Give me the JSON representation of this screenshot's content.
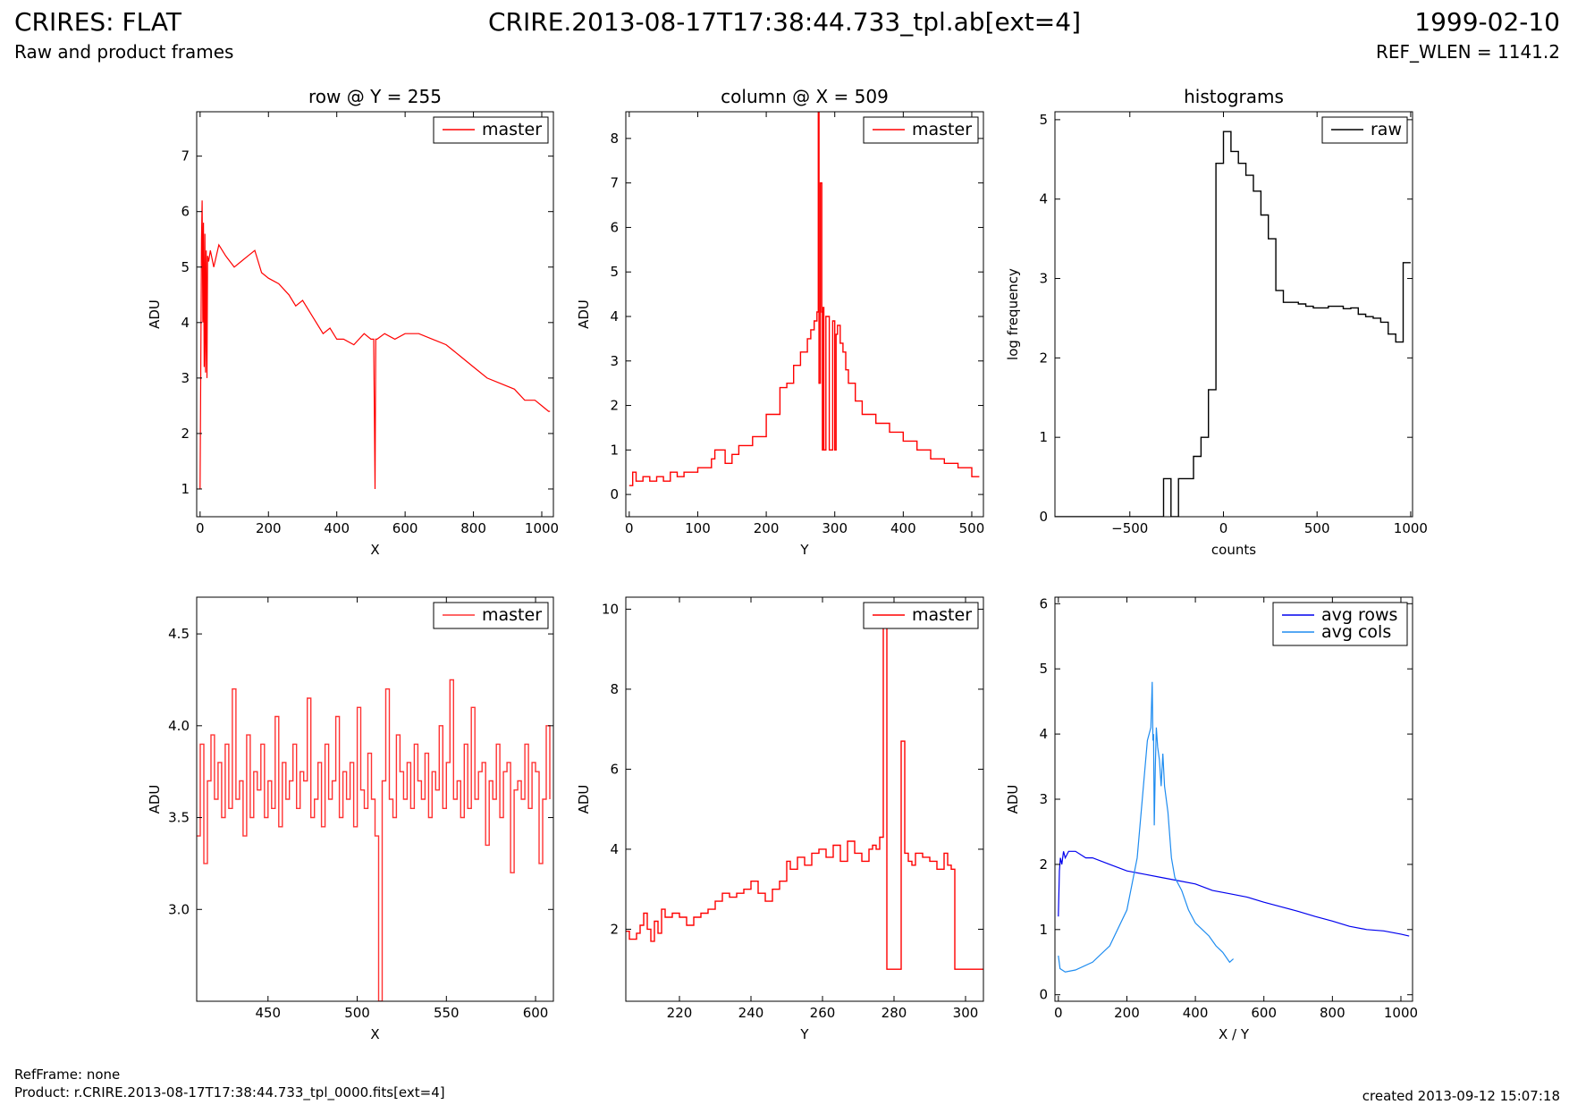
{
  "header": {
    "title": "CRIRES: FLAT",
    "subtitle": "Raw and product frames",
    "filename": "CRIRE.2013-08-17T17:38:44.733_tpl.ab[ext=4]",
    "date": "1999-02-10",
    "ref_wlen": "REF_WLEN = 1141.2"
  },
  "footer": {
    "ref_frame": "RefFrame: none",
    "product": "Product: r.CRIRE.2013-08-17T17:38:44.733_tpl_0000.fits[ext=4]",
    "created": "created 2013-09-12 15:07:18"
  },
  "chart_data": [
    {
      "id": "row",
      "type": "line",
      "title": "row @ Y = 255",
      "xlabel": "X",
      "ylabel": "ADU",
      "xlim": [
        -10,
        1034
      ],
      "ylim": [
        0.5,
        7.8
      ],
      "xticks": [
        0,
        200,
        400,
        600,
        800,
        1000
      ],
      "yticks": [
        1,
        2,
        3,
        4,
        5,
        6,
        7
      ],
      "legend": "top-right",
      "series": [
        {
          "name": "master",
          "color": "#ff0000",
          "step": false,
          "x": [
            0,
            4,
            6,
            8,
            10,
            12,
            14,
            16,
            18,
            20,
            22,
            25,
            30,
            40,
            55,
            75,
            100,
            120,
            140,
            160,
            180,
            200,
            230,
            260,
            280,
            300,
            330,
            360,
            380,
            400,
            420,
            450,
            480,
            500,
            508,
            512,
            514,
            518,
            540,
            570,
            600,
            640,
            680,
            720,
            760,
            800,
            840,
            880,
            920,
            950,
            980,
            1000,
            1020,
            1024
          ],
          "y": [
            1.0,
            5.5,
            6.2,
            4.0,
            5.8,
            3.2,
            5.6,
            3.1,
            5.3,
            3.0,
            5.2,
            5.1,
            5.3,
            5.0,
            5.4,
            5.2,
            5.0,
            5.1,
            5.2,
            5.3,
            4.9,
            4.8,
            4.7,
            4.5,
            4.3,
            4.4,
            4.1,
            3.8,
            3.9,
            3.7,
            3.7,
            3.6,
            3.8,
            3.7,
            3.7,
            1.0,
            3.7,
            3.7,
            3.8,
            3.7,
            3.8,
            3.8,
            3.7,
            3.6,
            3.4,
            3.2,
            3.0,
            2.9,
            2.8,
            2.6,
            2.6,
            2.5,
            2.4,
            2.4
          ]
        }
      ]
    },
    {
      "id": "column",
      "type": "line",
      "title": "column @ X = 509",
      "xlabel": "Y",
      "ylabel": "ADU",
      "xlim": [
        -5,
        517
      ],
      "ylim": [
        -0.5,
        8.6
      ],
      "xticks": [
        0,
        100,
        200,
        300,
        400,
        500
      ],
      "yticks": [
        0,
        1,
        2,
        3,
        4,
        5,
        6,
        7,
        8
      ],
      "legend": "top-right",
      "series": [
        {
          "name": "master",
          "color": "#ff0000",
          "step": true,
          "x": [
            0,
            5,
            10,
            20,
            30,
            40,
            50,
            60,
            70,
            80,
            90,
            100,
            120,
            125,
            140,
            150,
            160,
            180,
            200,
            220,
            230,
            240,
            250,
            260,
            265,
            270,
            274,
            276,
            277,
            279,
            281,
            282,
            283,
            284,
            287,
            292,
            297,
            300,
            302,
            304,
            306,
            308,
            312,
            316,
            320,
            330,
            340,
            360,
            380,
            400,
            420,
            440,
            460,
            480,
            500,
            511
          ],
          "y": [
            0.2,
            0.5,
            0.3,
            0.4,
            0.3,
            0.4,
            0.3,
            0.5,
            0.4,
            0.5,
            0.5,
            0.6,
            0.8,
            1.0,
            0.7,
            0.9,
            1.1,
            1.3,
            1.8,
            2.4,
            2.5,
            2.9,
            3.2,
            3.5,
            3.7,
            3.9,
            4.1,
            8.6,
            2.5,
            7.0,
            4.1,
            1.0,
            4.2,
            1.0,
            4.0,
            1.0,
            3.9,
            1.0,
            3.6,
            3.8,
            3.8,
            3.4,
            3.2,
            2.8,
            2.5,
            2.1,
            1.8,
            1.6,
            1.4,
            1.2,
            1.0,
            0.8,
            0.7,
            0.6,
            0.4,
            0.4
          ]
        }
      ]
    },
    {
      "id": "histograms",
      "type": "line",
      "title": "histograms",
      "xlabel": "counts",
      "ylabel": "log frequency",
      "xlim": [
        -900,
        1010
      ],
      "ylim": [
        0,
        5.1
      ],
      "xticks": [
        -500,
        0,
        500,
        1000
      ],
      "yticks": [
        0,
        1,
        2,
        3,
        4,
        5
      ],
      "legend": "top-right",
      "series": [
        {
          "name": "raw",
          "color": "#000000",
          "step": true,
          "x": [
            -900,
            -360,
            -320,
            -280,
            -240,
            -200,
            -160,
            -120,
            -80,
            -40,
            0,
            40,
            80,
            120,
            160,
            200,
            240,
            280,
            320,
            360,
            400,
            440,
            480,
            520,
            560,
            600,
            640,
            680,
            720,
            760,
            800,
            840,
            880,
            920,
            960,
            1000
          ],
          "y": [
            0,
            0,
            0.48,
            0,
            0.48,
            0.48,
            0.76,
            1.0,
            1.6,
            4.45,
            4.85,
            4.6,
            4.45,
            4.3,
            4.1,
            3.8,
            3.5,
            2.85,
            2.7,
            2.7,
            2.68,
            2.65,
            2.63,
            2.63,
            2.65,
            2.65,
            2.62,
            2.63,
            2.55,
            2.52,
            2.5,
            2.45,
            2.3,
            2.2,
            3.2,
            3.2
          ]
        }
      ]
    },
    {
      "id": "row-zoom",
      "type": "line",
      "title": "",
      "xlabel": "X",
      "ylabel": "ADU",
      "xlim": [
        410,
        610
      ],
      "ylim": [
        2.5,
        4.7
      ],
      "xticks": [
        450,
        500,
        550,
        600
      ],
      "yticks": [
        3.0,
        3.5,
        4.0,
        4.5
      ],
      "legend": "top-right",
      "series": [
        {
          "name": "master",
          "color": "#ff3333",
          "step": true,
          "x": [
            410,
            412,
            414,
            416,
            418,
            420,
            422,
            424,
            426,
            428,
            430,
            432,
            434,
            436,
            438,
            440,
            442,
            444,
            446,
            448,
            450,
            452,
            454,
            456,
            458,
            460,
            462,
            464,
            466,
            468,
            470,
            472,
            474,
            476,
            478,
            480,
            482,
            484,
            486,
            488,
            490,
            492,
            494,
            496,
            498,
            500,
            502,
            504,
            506,
            508,
            510,
            512,
            514,
            516,
            518,
            520,
            522,
            524,
            526,
            528,
            530,
            532,
            534,
            536,
            538,
            540,
            542,
            544,
            546,
            548,
            550,
            552,
            554,
            556,
            558,
            560,
            562,
            564,
            566,
            568,
            570,
            572,
            574,
            576,
            578,
            580,
            582,
            584,
            586,
            588,
            590,
            592,
            594,
            596,
            598,
            600,
            602,
            604,
            606,
            608
          ],
          "y": [
            3.4,
            3.9,
            3.25,
            3.7,
            3.95,
            3.6,
            3.8,
            3.5,
            3.9,
            3.55,
            4.2,
            3.6,
            3.7,
            3.4,
            3.95,
            3.5,
            3.75,
            3.65,
            3.9,
            3.5,
            3.7,
            3.55,
            4.05,
            3.45,
            3.8,
            3.6,
            3.7,
            3.9,
            3.55,
            3.75,
            3.7,
            4.15,
            3.5,
            3.6,
            3.8,
            3.45,
            3.9,
            3.6,
            3.7,
            4.05,
            3.5,
            3.75,
            3.6,
            3.8,
            3.45,
            4.1,
            3.65,
            3.55,
            3.85,
            3.6,
            3.4,
            2.5,
            3.7,
            4.2,
            3.6,
            3.5,
            3.95,
            3.75,
            3.6,
            3.8,
            3.55,
            3.9,
            3.7,
            3.6,
            3.85,
            3.5,
            3.75,
            3.65,
            4.0,
            3.55,
            3.8,
            4.25,
            3.6,
            3.7,
            3.5,
            3.9,
            3.55,
            4.1,
            3.6,
            3.75,
            3.8,
            3.35,
            3.7,
            3.6,
            3.9,
            3.5,
            3.75,
            3.8,
            3.2,
            3.65,
            3.7,
            3.6,
            3.9,
            3.55,
            3.8,
            3.75,
            3.25,
            3.6,
            4.0,
            3.6
          ]
        }
      ]
    },
    {
      "id": "column-zoom",
      "type": "line",
      "title": "",
      "xlabel": "Y",
      "ylabel": "ADU",
      "xlim": [
        205,
        305
      ],
      "ylim": [
        0.2,
        10.3
      ],
      "xticks": [
        220,
        240,
        260,
        280,
        300
      ],
      "yticks": [
        2,
        4,
        6,
        8,
        10
      ],
      "legend": "top-right",
      "series": [
        {
          "name": "master",
          "color": "#ff0000",
          "step": true,
          "x": [
            205,
            206,
            208,
            209,
            210,
            211,
            212,
            213,
            214,
            215,
            216,
            218,
            220,
            222,
            224,
            226,
            228,
            230,
            232,
            234,
            236,
            238,
            240,
            242,
            244,
            246,
            248,
            250,
            251,
            253,
            255,
            257,
            259,
            261,
            263,
            265,
            267,
            269,
            271,
            273,
            274,
            275,
            276,
            277,
            278,
            279,
            282,
            283,
            284,
            285,
            286,
            288,
            290,
            292,
            294,
            295,
            296,
            297,
            298,
            300,
            302,
            305
          ],
          "y": [
            1.95,
            1.75,
            1.9,
            2.1,
            2.4,
            2.0,
            1.7,
            2.2,
            1.9,
            2.5,
            2.3,
            2.4,
            2.3,
            2.1,
            2.3,
            2.4,
            2.5,
            2.7,
            2.9,
            2.8,
            2.9,
            3.0,
            3.2,
            2.9,
            2.7,
            3.0,
            3.2,
            3.7,
            3.5,
            3.8,
            3.6,
            3.9,
            4.0,
            3.8,
            4.1,
            3.7,
            4.2,
            3.9,
            3.7,
            4.0,
            4.1,
            4.0,
            4.3,
            10.0,
            1.0,
            1.0,
            6.7,
            3.9,
            3.7,
            3.6,
            3.9,
            3.8,
            3.7,
            3.5,
            3.9,
            3.6,
            3.5,
            1.0,
            1.0,
            1.0,
            1.0,
            1.0
          ]
        }
      ]
    },
    {
      "id": "averages",
      "type": "line",
      "title": "",
      "xlabel": "X / Y",
      "ylabel": "ADU",
      "xlim": [
        -10,
        1034
      ],
      "ylim": [
        -0.1,
        6.1
      ],
      "xticks": [
        0,
        200,
        400,
        600,
        800,
        1000
      ],
      "yticks": [
        0,
        1,
        2,
        3,
        4,
        5,
        6
      ],
      "legend": "top-right",
      "series": [
        {
          "name": "avg rows",
          "color": "#0000ee",
          "step": false,
          "x": [
            0,
            3,
            6,
            10,
            15,
            20,
            30,
            50,
            80,
            100,
            150,
            200,
            250,
            300,
            350,
            400,
            450,
            500,
            550,
            600,
            650,
            700,
            750,
            800,
            850,
            900,
            950,
            1000,
            1024
          ],
          "y": [
            1.2,
            1.9,
            2.1,
            2.0,
            2.2,
            2.1,
            2.2,
            2.2,
            2.1,
            2.1,
            2.0,
            1.9,
            1.85,
            1.8,
            1.75,
            1.7,
            1.6,
            1.55,
            1.5,
            1.42,
            1.35,
            1.28,
            1.2,
            1.13,
            1.05,
            1.0,
            0.98,
            0.93,
            0.9
          ]
        },
        {
          "name": "avg cols",
          "color": "#1e8cf0",
          "step": false,
          "x": [
            0,
            5,
            20,
            50,
            100,
            150,
            200,
            230,
            250,
            260,
            270,
            274,
            276,
            278,
            280,
            283,
            286,
            290,
            295,
            300,
            305,
            310,
            320,
            330,
            340,
            360,
            380,
            400,
            420,
            440,
            460,
            480,
            500,
            511
          ],
          "y": [
            0.6,
            0.4,
            0.35,
            0.38,
            0.5,
            0.75,
            1.3,
            2.1,
            3.3,
            3.9,
            4.1,
            4.8,
            3.9,
            4.0,
            2.6,
            3.5,
            4.1,
            3.8,
            3.6,
            3.2,
            3.7,
            3.2,
            2.8,
            2.1,
            1.8,
            1.6,
            1.3,
            1.1,
            1.0,
            0.9,
            0.75,
            0.65,
            0.5,
            0.55
          ]
        }
      ]
    }
  ]
}
